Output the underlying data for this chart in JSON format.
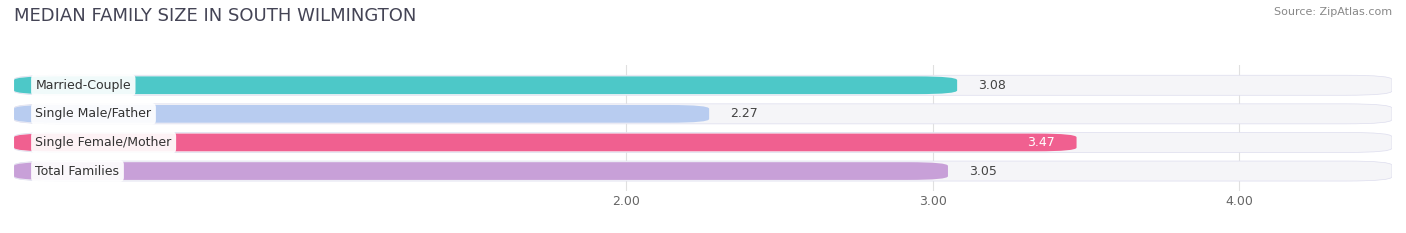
{
  "title": "MEDIAN FAMILY SIZE IN SOUTH WILMINGTON",
  "source": "Source: ZipAtlas.com",
  "categories": [
    "Married-Couple",
    "Single Male/Father",
    "Single Female/Mother",
    "Total Families"
  ],
  "values": [
    3.08,
    2.27,
    3.47,
    3.05
  ],
  "bar_colors": [
    "#4dc8c8",
    "#b8ccf0",
    "#f06090",
    "#c8a0d8"
  ],
  "background_color": "#ffffff",
  "bar_bg_color": "#e8e8ee",
  "row_bg_color": "#f5f5f8",
  "xlim": [
    0.0,
    4.5
  ],
  "xmin": 0.0,
  "xmax": 4.5,
  "xticks": [
    2.0,
    3.0,
    4.0
  ],
  "xtick_labels": [
    "2.00",
    "3.00",
    "4.00"
  ],
  "title_fontsize": 13,
  "label_fontsize": 9,
  "value_fontsize": 9,
  "bar_height": 0.62,
  "value_inside": [
    false,
    false,
    true,
    false
  ],
  "value_colors_inside": [
    "#333333",
    "#333333",
    "#ffffff",
    "#333333"
  ]
}
